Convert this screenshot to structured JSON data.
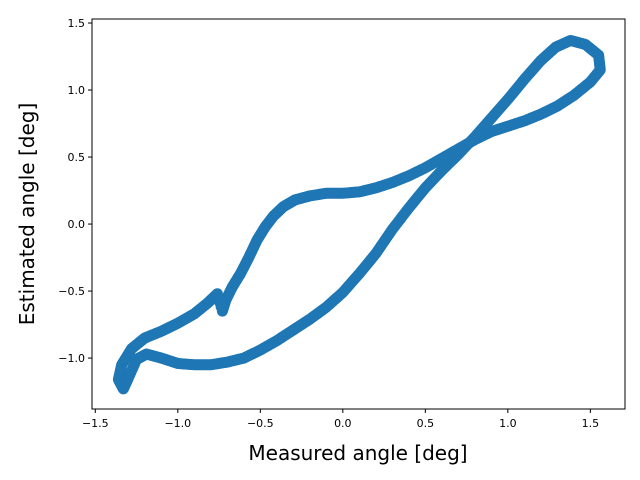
{
  "chart_data": {
    "type": "scatter",
    "title": "",
    "xlabel": "Measured angle [deg]",
    "ylabel": "Estimated angle [deg]",
    "xlim": [
      -1.52,
      1.71
    ],
    "ylim": [
      -1.38,
      1.53
    ],
    "grid": false,
    "xticks": [
      -1.5,
      -1.0,
      -0.5,
      0.0,
      0.5,
      1.0,
      1.5
    ],
    "xtick_labels": [
      "−1.5",
      "−1.0",
      "−0.5",
      "0.0",
      "0.5",
      "1.0",
      "1.5"
    ],
    "yticks": [
      -1.0,
      -0.5,
      0.0,
      0.5,
      1.0,
      1.5
    ],
    "ytick_labels": [
      "−1.0",
      "−0.5",
      "0.0",
      "0.5",
      "1.0",
      "1.5"
    ],
    "series": [
      {
        "color": "#1f77b4",
        "points": [
          [
            -0.73,
            -0.65
          ],
          [
            -0.71,
            -0.57
          ],
          [
            -0.67,
            -0.47
          ],
          [
            -0.62,
            -0.37
          ],
          [
            -0.57,
            -0.25
          ],
          [
            -0.52,
            -0.12
          ],
          [
            -0.47,
            -0.02
          ],
          [
            -0.42,
            0.06
          ],
          [
            -0.36,
            0.13
          ],
          [
            -0.29,
            0.18
          ],
          [
            -0.2,
            0.21
          ],
          [
            -0.1,
            0.23
          ],
          [
            0.0,
            0.23
          ],
          [
            0.1,
            0.24
          ],
          [
            0.2,
            0.27
          ],
          [
            0.3,
            0.31
          ],
          [
            0.4,
            0.36
          ],
          [
            0.5,
            0.42
          ],
          [
            0.6,
            0.49
          ],
          [
            0.7,
            0.56
          ],
          [
            0.8,
            0.63
          ],
          [
            0.9,
            0.69
          ],
          [
            1.0,
            0.73
          ],
          [
            1.1,
            0.77
          ],
          [
            1.2,
            0.82
          ],
          [
            1.3,
            0.88
          ],
          [
            1.4,
            0.96
          ],
          [
            1.5,
            1.06
          ],
          [
            1.56,
            1.15
          ],
          [
            1.55,
            1.26
          ],
          [
            1.47,
            1.34
          ],
          [
            1.38,
            1.37
          ],
          [
            1.29,
            1.32
          ],
          [
            1.2,
            1.22
          ],
          [
            1.1,
            1.08
          ],
          [
            1.0,
            0.93
          ],
          [
            0.9,
            0.79
          ],
          [
            0.8,
            0.65
          ],
          [
            0.7,
            0.52
          ],
          [
            0.6,
            0.4
          ],
          [
            0.5,
            0.27
          ],
          [
            0.4,
            0.12
          ],
          [
            0.3,
            -0.04
          ],
          [
            0.2,
            -0.22
          ],
          [
            0.1,
            -0.37
          ],
          [
            0.0,
            -0.51
          ],
          [
            -0.1,
            -0.62
          ],
          [
            -0.2,
            -0.71
          ],
          [
            -0.3,
            -0.79
          ],
          [
            -0.4,
            -0.87
          ],
          [
            -0.5,
            -0.94
          ],
          [
            -0.6,
            -1.0
          ],
          [
            -0.7,
            -1.03
          ],
          [
            -0.8,
            -1.05
          ],
          [
            -0.9,
            -1.05
          ],
          [
            -1.0,
            -1.04
          ],
          [
            -1.1,
            -1.0
          ],
          [
            -1.19,
            -0.97
          ],
          [
            -1.25,
            -1.01
          ],
          [
            -1.3,
            -1.15
          ],
          [
            -1.33,
            -1.23
          ],
          [
            -1.36,
            -1.16
          ],
          [
            -1.34,
            -1.05
          ],
          [
            -1.28,
            -0.93
          ],
          [
            -1.2,
            -0.85
          ],
          [
            -1.1,
            -0.8
          ],
          [
            -1.0,
            -0.74
          ],
          [
            -0.9,
            -0.67
          ],
          [
            -0.82,
            -0.59
          ],
          [
            -0.76,
            -0.52
          ]
        ]
      }
    ]
  }
}
